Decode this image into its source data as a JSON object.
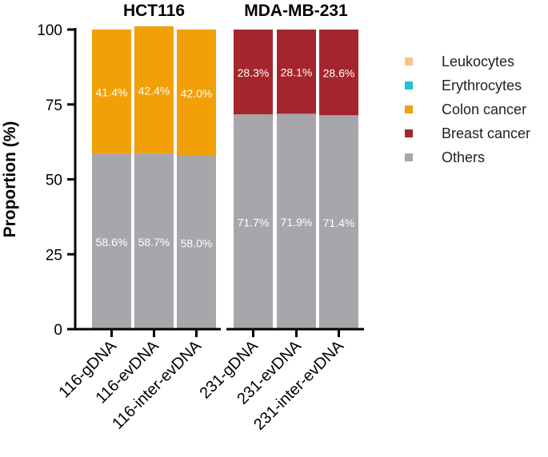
{
  "chart_data": {
    "type": "bar",
    "stacked": true,
    "ylabel": "Proportion (%)",
    "ylim": [
      0,
      100
    ],
    "yticks": [
      0,
      25,
      50,
      75,
      100
    ],
    "categories": [
      "116-gDNA",
      "116-evDNA",
      "116-inter-evDNA",
      "231-gDNA",
      "231-evDNA",
      "231-inter-evDNA"
    ],
    "groups": [
      {
        "title": "HCT116",
        "categories": [
          0,
          1,
          2
        ]
      },
      {
        "title": "MDA-MB-231",
        "categories": [
          3,
          4,
          5
        ]
      }
    ],
    "series": [
      {
        "name": "Others",
        "color": "#a6a6ab",
        "values": [
          58.6,
          58.7,
          58.0,
          71.7,
          71.9,
          71.4
        ],
        "labels": [
          "58.6%",
          "58.7%",
          "58.0%",
          "71.7%",
          "71.9%",
          "71.4%"
        ]
      },
      {
        "name": "Colon cancer",
        "color": "#f2a007",
        "values": [
          41.4,
          42.4,
          42.0,
          0,
          0,
          0
        ],
        "labels": [
          "41.4%",
          "42.4%",
          "42.0%",
          "",
          "",
          ""
        ]
      },
      {
        "name": "Breast cancer",
        "color": "#a4262c",
        "values": [
          0,
          0,
          0,
          28.3,
          28.1,
          28.6
        ],
        "labels": [
          "",
          "",
          "",
          "28.3%",
          "28.1%",
          "28.6%"
        ]
      },
      {
        "name": "Erythrocytes",
        "color": "#21c4d4",
        "values": [
          0,
          0,
          0,
          0,
          0,
          0
        ]
      },
      {
        "name": "Leukocytes",
        "color": "#f7c281",
        "values": [
          0,
          0,
          0,
          0,
          0,
          0
        ]
      }
    ],
    "legend": {
      "position": "right",
      "entries": [
        {
          "name": "Leukocytes",
          "color": "#f7c281"
        },
        {
          "name": "Erythrocytes",
          "color": "#21c4d4"
        },
        {
          "name": "Colon cancer",
          "color": "#f2a007"
        },
        {
          "name": "Breast cancer",
          "color": "#a4262c"
        },
        {
          "name": "Others",
          "color": "#a6a6ab"
        }
      ]
    },
    "grid": false
  }
}
